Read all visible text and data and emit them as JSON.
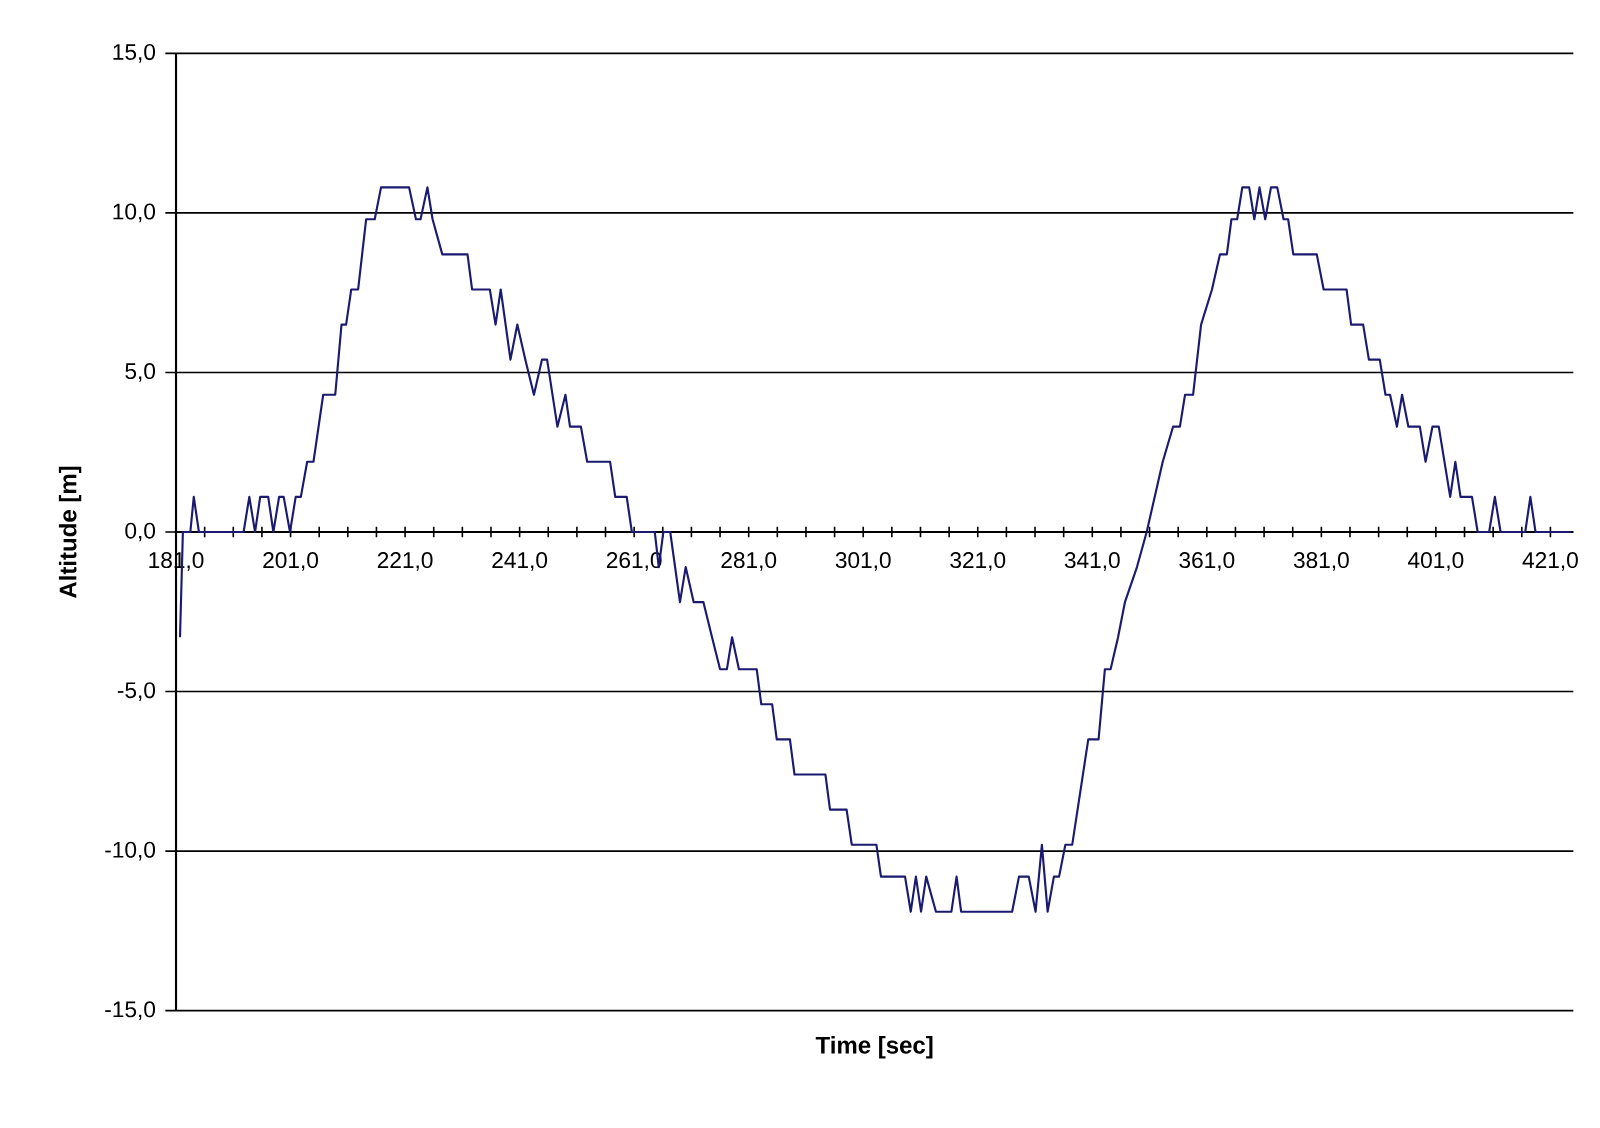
{
  "chart_data": {
    "type": "line",
    "xlabel": "Time [sec]",
    "ylabel": "Altitude [m]",
    "xlim": [
      181,
      425
    ],
    "ylim": [
      -15,
      15
    ],
    "xticks": [
      {
        "value": 181,
        "label": "181,0"
      },
      {
        "value": 186,
        "label": null
      },
      {
        "value": 191,
        "label": null
      },
      {
        "value": 196,
        "label": null
      },
      {
        "value": 201,
        "label": "201,0"
      },
      {
        "value": 206,
        "label": null
      },
      {
        "value": 211,
        "label": null
      },
      {
        "value": 216,
        "label": null
      },
      {
        "value": 221,
        "label": "221,0"
      },
      {
        "value": 226,
        "label": null
      },
      {
        "value": 231,
        "label": null
      },
      {
        "value": 236,
        "label": null
      },
      {
        "value": 241,
        "label": "241,0"
      },
      {
        "value": 246,
        "label": null
      },
      {
        "value": 251,
        "label": null
      },
      {
        "value": 256,
        "label": null
      },
      {
        "value": 261,
        "label": "261,0"
      },
      {
        "value": 266,
        "label": null
      },
      {
        "value": 271,
        "label": null
      },
      {
        "value": 276,
        "label": null
      },
      {
        "value": 281,
        "label": "281,0"
      },
      {
        "value": 286,
        "label": null
      },
      {
        "value": 291,
        "label": null
      },
      {
        "value": 296,
        "label": null
      },
      {
        "value": 301,
        "label": "301,0"
      },
      {
        "value": 306,
        "label": null
      },
      {
        "value": 311,
        "label": null
      },
      {
        "value": 316,
        "label": null
      },
      {
        "value": 321,
        "label": "321,0"
      },
      {
        "value": 326,
        "label": null
      },
      {
        "value": 331,
        "label": null
      },
      {
        "value": 336,
        "label": null
      },
      {
        "value": 341,
        "label": "341,0"
      },
      {
        "value": 346,
        "label": null
      },
      {
        "value": 351,
        "label": null
      },
      {
        "value": 356,
        "label": null
      },
      {
        "value": 361,
        "label": "361,0"
      },
      {
        "value": 366,
        "label": null
      },
      {
        "value": 371,
        "label": null
      },
      {
        "value": 376,
        "label": null
      },
      {
        "value": 381,
        "label": "381,0"
      },
      {
        "value": 386,
        "label": null
      },
      {
        "value": 391,
        "label": null
      },
      {
        "value": 396,
        "label": null
      },
      {
        "value": 401,
        "label": "401,0"
      },
      {
        "value": 406,
        "label": null
      },
      {
        "value": 411,
        "label": null
      },
      {
        "value": 416,
        "label": null
      },
      {
        "value": 421,
        "label": "421,0"
      }
    ],
    "yticks": [
      {
        "value": -15,
        "label": "-15,0"
      },
      {
        "value": -10,
        "label": "-10,0"
      },
      {
        "value": -5,
        "label": "-5,0"
      },
      {
        "value": 0,
        "label": "0,0"
      },
      {
        "value": 5,
        "label": "5,0"
      },
      {
        "value": 10,
        "label": "10,0"
      },
      {
        "value": 15,
        "label": "15,0"
      }
    ],
    "grid": "y",
    "marker": "none",
    "line_style": "solid",
    "series": [
      {
        "color": "#1a1a70",
        "x": [
          181.7,
          182.2,
          183.5,
          184.1,
          185,
          192.8,
          193.8,
          194.8,
          195.7,
          197.1,
          198,
          199,
          199.8,
          200.9,
          201.9,
          202.8,
          203.9,
          205,
          206.7,
          208.8,
          209.9,
          210.7,
          211.6,
          212.8,
          214.2,
          215.7,
          216.8,
          221.7,
          222.9,
          223.7,
          224.9,
          225.8,
          227.5,
          231.9,
          232.7,
          235.8,
          236.8,
          237.7,
          239.4,
          240.6,
          242,
          243.5,
          244.9,
          245.8,
          247.6,
          249,
          249.8,
          251.7,
          252.8,
          256.8,
          257.7,
          259.7,
          260.6,
          264.6,
          265.3,
          266.1,
          267.3,
          269,
          270,
          271.4,
          273.1,
          274.6,
          276,
          277.2,
          278.1,
          279.3,
          282.4,
          283.2,
          285.1,
          285.9,
          288.2,
          289,
          294.4,
          295.2,
          298.1,
          299,
          303.3,
          304.1,
          308.3,
          309.3,
          310.2,
          311.1,
          312,
          313.7,
          316.4,
          317.3,
          318.1,
          327,
          328.2,
          329.9,
          331.1,
          332.2,
          333.2,
          334.3,
          335.2,
          336.3,
          337.5,
          340.3,
          342.1,
          343.2,
          344.2,
          345.5,
          346.7,
          348.8,
          350.5,
          353.3,
          355.1,
          356.3,
          357.2,
          358.6,
          360,
          361.9,
          363.3,
          364.5,
          365.3,
          366.3,
          367.2,
          368.4,
          369.3,
          370.2,
          371.2,
          372.2,
          373.3,
          374.4,
          375.2,
          376.1,
          380.2,
          381.4,
          385.4,
          386.2,
          388.3,
          389.3,
          391.2,
          392.2,
          393,
          394.2,
          395.1,
          396.2,
          398.2,
          399.2,
          400.4,
          401.5,
          403.5,
          404.4,
          405.3,
          407.3,
          408.3,
          410.3,
          411.3,
          412.3,
          416.6,
          417.5,
          418.4,
          424.5
        ],
        "values": [
          -3.3,
          0,
          0,
          1.1,
          0,
          0,
          1.1,
          0,
          1.1,
          1.1,
          0,
          1.1,
          1.1,
          0,
          1.1,
          1.1,
          2.2,
          2.2,
          4.3,
          4.3,
          6.5,
          6.5,
          7.6,
          7.6,
          9.8,
          9.8,
          10.8,
          10.8,
          9.8,
          9.8,
          10.8,
          9.8,
          8.7,
          8.7,
          7.6,
          7.6,
          6.5,
          7.6,
          5.4,
          6.5,
          5.4,
          4.3,
          5.4,
          5.4,
          3.3,
          4.3,
          3.3,
          3.3,
          2.2,
          2.2,
          1.1,
          1.1,
          0,
          0,
          -1.1,
          0,
          0,
          -2.2,
          -1.1,
          -2.2,
          -2.2,
          -3.3,
          -4.3,
          -4.3,
          -3.3,
          -4.3,
          -4.3,
          -5.4,
          -5.4,
          -6.5,
          -6.5,
          -7.6,
          -7.6,
          -8.7,
          -8.7,
          -9.8,
          -9.8,
          -10.8,
          -10.8,
          -11.9,
          -10.8,
          -11.9,
          -10.8,
          -11.9,
          -11.9,
          -10.8,
          -11.9,
          -11.9,
          -10.8,
          -10.8,
          -11.9,
          -9.8,
          -11.9,
          -10.8,
          -10.8,
          -9.8,
          -9.8,
          -6.5,
          -6.5,
          -4.3,
          -4.3,
          -3.3,
          -2.2,
          -1.1,
          0,
          2.2,
          3.3,
          3.3,
          4.3,
          4.3,
          6.5,
          7.6,
          8.7,
          8.7,
          9.8,
          9.8,
          10.8,
          10.8,
          9.8,
          10.8,
          9.8,
          10.8,
          10.8,
          9.8,
          9.8,
          8.7,
          8.7,
          7.6,
          7.6,
          6.5,
          6.5,
          5.4,
          5.4,
          4.3,
          4.3,
          3.3,
          4.3,
          3.3,
          3.3,
          2.2,
          3.3,
          3.3,
          1.1,
          2.2,
          1.1,
          1.1,
          0,
          0,
          1.1,
          0,
          0,
          1.1,
          0,
          0
        ]
      }
    ]
  }
}
